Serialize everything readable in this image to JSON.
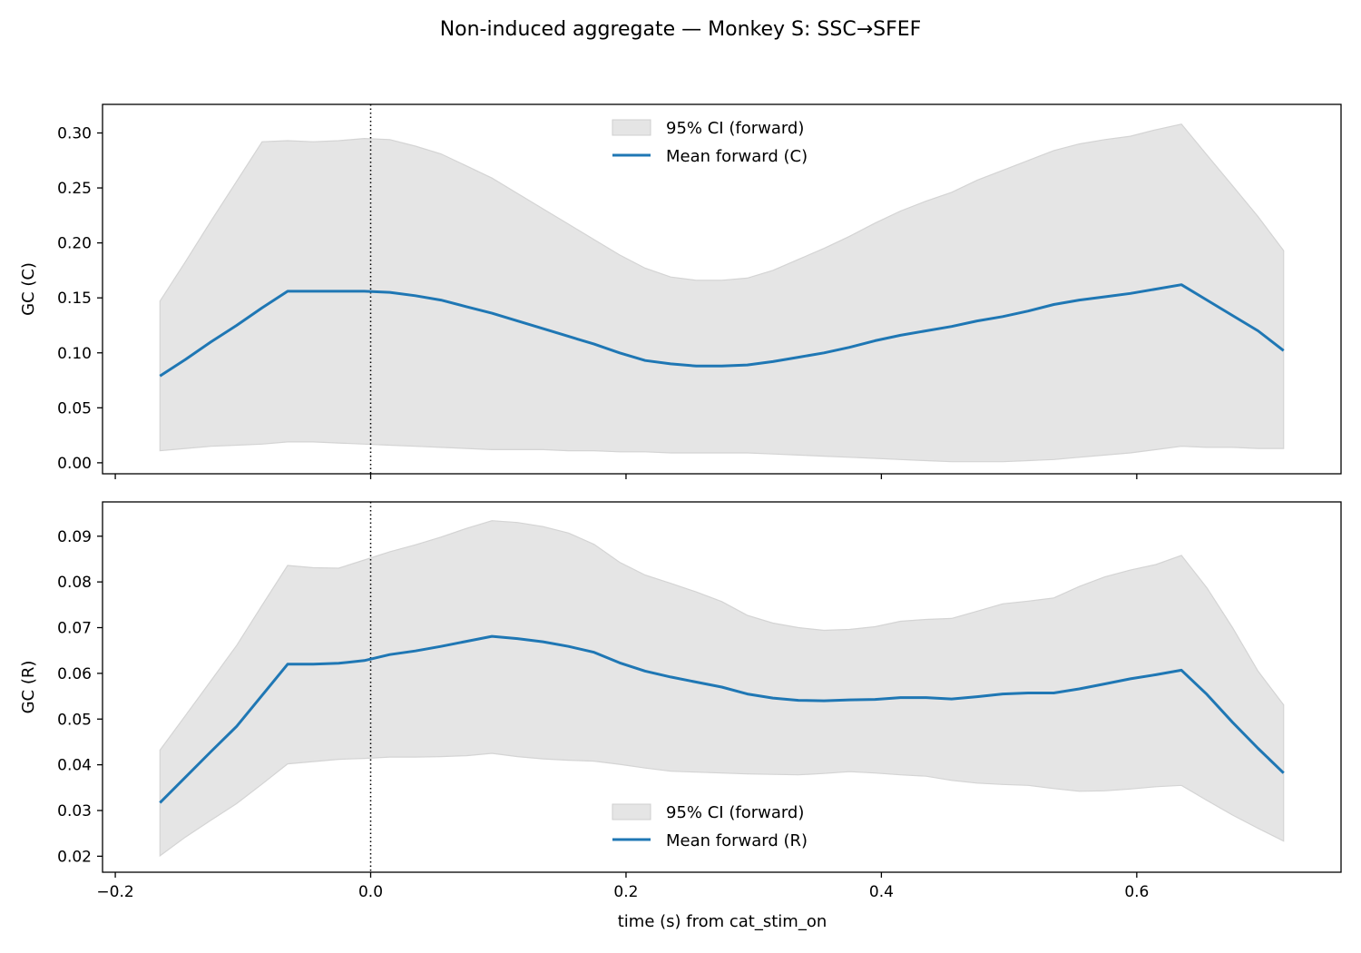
{
  "chart_data": {
    "type": "line",
    "title": "Non-induced aggregate — Monkey S: SSC→SFEF",
    "xlabel": "time (s) from cat_stim_on",
    "xlim": [
      -0.21,
      0.76
    ],
    "xticks": [
      -0.2,
      0.0,
      0.2,
      0.4,
      0.6
    ],
    "xtick_labels": [
      "−0.2",
      "0.0",
      "0.2",
      "0.4",
      "0.6"
    ],
    "vline_x": 0.0,
    "x": [
      -0.165,
      -0.145,
      -0.125,
      -0.105,
      -0.085,
      -0.065,
      -0.045,
      -0.025,
      -0.005,
      0.015,
      0.035,
      0.055,
      0.075,
      0.095,
      0.115,
      0.135,
      0.155,
      0.175,
      0.195,
      0.215,
      0.235,
      0.255,
      0.275,
      0.295,
      0.315,
      0.335,
      0.355,
      0.375,
      0.395,
      0.415,
      0.435,
      0.455,
      0.475,
      0.495,
      0.515,
      0.535,
      0.555,
      0.575,
      0.595,
      0.615,
      0.635,
      0.655,
      0.675,
      0.695,
      0.715
    ],
    "panels": [
      {
        "ylabel": "GC (C)",
        "ylim": [
          -0.01,
          0.326
        ],
        "yticks": [
          0.0,
          0.05,
          0.1,
          0.15,
          0.2,
          0.25,
          0.3
        ],
        "ytick_labels": [
          "0.00",
          "0.05",
          "0.10",
          "0.15",
          "0.20",
          "0.25",
          "0.30"
        ],
        "legend_position": "top-center",
        "series": [
          {
            "name": "Mean forward (C)",
            "color": "#1f77b4",
            "values": [
              0.079,
              0.094,
              0.11,
              0.125,
              0.141,
              0.156,
              0.156,
              0.156,
              0.156,
              0.155,
              0.152,
              0.148,
              0.142,
              0.136,
              0.129,
              0.122,
              0.115,
              0.108,
              0.1,
              0.093,
              0.09,
              0.088,
              0.088,
              0.089,
              0.092,
              0.096,
              0.1,
              0.105,
              0.111,
              0.116,
              0.12,
              0.124,
              0.129,
              0.133,
              0.138,
              0.144,
              0.148,
              0.151,
              0.154,
              0.158,
              0.162,
              0.148,
              0.134,
              0.12,
              0.102
            ]
          }
        ],
        "band": {
          "name": "95% CI (forward)",
          "color": "#e5e5e5",
          "lower": [
            0.011,
            0.013,
            0.015,
            0.016,
            0.017,
            0.019,
            0.019,
            0.018,
            0.017,
            0.016,
            0.015,
            0.014,
            0.013,
            0.012,
            0.012,
            0.012,
            0.011,
            0.011,
            0.01,
            0.01,
            0.009,
            0.009,
            0.009,
            0.009,
            0.008,
            0.007,
            0.006,
            0.005,
            0.004,
            0.003,
            0.002,
            0.001,
            0.001,
            0.001,
            0.002,
            0.003,
            0.005,
            0.007,
            0.009,
            0.012,
            0.015,
            0.014,
            0.014,
            0.013,
            0.013
          ],
          "upper": [
            0.147,
            0.183,
            0.22,
            0.256,
            0.292,
            0.293,
            0.292,
            0.293,
            0.295,
            0.294,
            0.288,
            0.281,
            0.27,
            0.259,
            0.245,
            0.231,
            0.217,
            0.203,
            0.189,
            0.177,
            0.169,
            0.166,
            0.166,
            0.168,
            0.175,
            0.185,
            0.195,
            0.206,
            0.218,
            0.229,
            0.238,
            0.246,
            0.257,
            0.266,
            0.275,
            0.284,
            0.29,
            0.294,
            0.297,
            0.303,
            0.308,
            0.28,
            0.252,
            0.224,
            0.193
          ]
        }
      },
      {
        "ylabel": "GC (R)",
        "ylim": [
          0.0165,
          0.0975
        ],
        "yticks": [
          0.02,
          0.03,
          0.04,
          0.05,
          0.06,
          0.07,
          0.08,
          0.09
        ],
        "ytick_labels": [
          "0.02",
          "0.03",
          "0.04",
          "0.05",
          "0.06",
          "0.07",
          "0.08",
          "0.09"
        ],
        "legend_position": "bottom-center",
        "series": [
          {
            "name": "Mean forward (R)",
            "color": "#1f77b4",
            "values": [
              0.0317,
              0.0373,
              0.0429,
              0.0484,
              0.0552,
              0.062,
              0.062,
              0.0622,
              0.0628,
              0.0641,
              0.0649,
              0.0659,
              0.067,
              0.0681,
              0.0676,
              0.0669,
              0.0659,
              0.0646,
              0.0623,
              0.0605,
              0.0592,
              0.0581,
              0.057,
              0.0555,
              0.0546,
              0.0541,
              0.054,
              0.0542,
              0.0543,
              0.0547,
              0.0547,
              0.0544,
              0.0549,
              0.0555,
              0.0557,
              0.0557,
              0.0566,
              0.0577,
              0.0588,
              0.0597,
              0.0607,
              0.0554,
              0.0493,
              0.0436,
              0.0382
            ]
          }
        ],
        "band": {
          "name": "95% CI (forward)",
          "color": "#e5e5e5",
          "lower": [
            0.0201,
            0.0242,
            0.0279,
            0.0315,
            0.0358,
            0.0402,
            0.0407,
            0.0412,
            0.0414,
            0.0417,
            0.0417,
            0.0418,
            0.042,
            0.0425,
            0.0418,
            0.0413,
            0.041,
            0.0408,
            0.0401,
            0.0393,
            0.0386,
            0.0384,
            0.0382,
            0.038,
            0.0379,
            0.0378,
            0.0381,
            0.0385,
            0.0382,
            0.0378,
            0.0375,
            0.0366,
            0.036,
            0.0357,
            0.0355,
            0.0348,
            0.0342,
            0.0343,
            0.0347,
            0.0352,
            0.0355,
            0.0322,
            0.029,
            0.0261,
            0.0233
          ],
          "upper": [
            0.0432,
            0.0508,
            0.0584,
            0.0661,
            0.0749,
            0.0836,
            0.0831,
            0.083,
            0.0848,
            0.0866,
            0.0881,
            0.0898,
            0.0917,
            0.0934,
            0.093,
            0.0921,
            0.0907,
            0.0882,
            0.0843,
            0.0815,
            0.0797,
            0.0778,
            0.0757,
            0.0727,
            0.071,
            0.07,
            0.0694,
            0.0696,
            0.0702,
            0.0714,
            0.0718,
            0.072,
            0.0736,
            0.0752,
            0.0758,
            0.0765,
            0.079,
            0.0811,
            0.0826,
            0.0838,
            0.0858,
            0.0787,
            0.07,
            0.0605,
            0.0531
          ]
        }
      }
    ]
  }
}
